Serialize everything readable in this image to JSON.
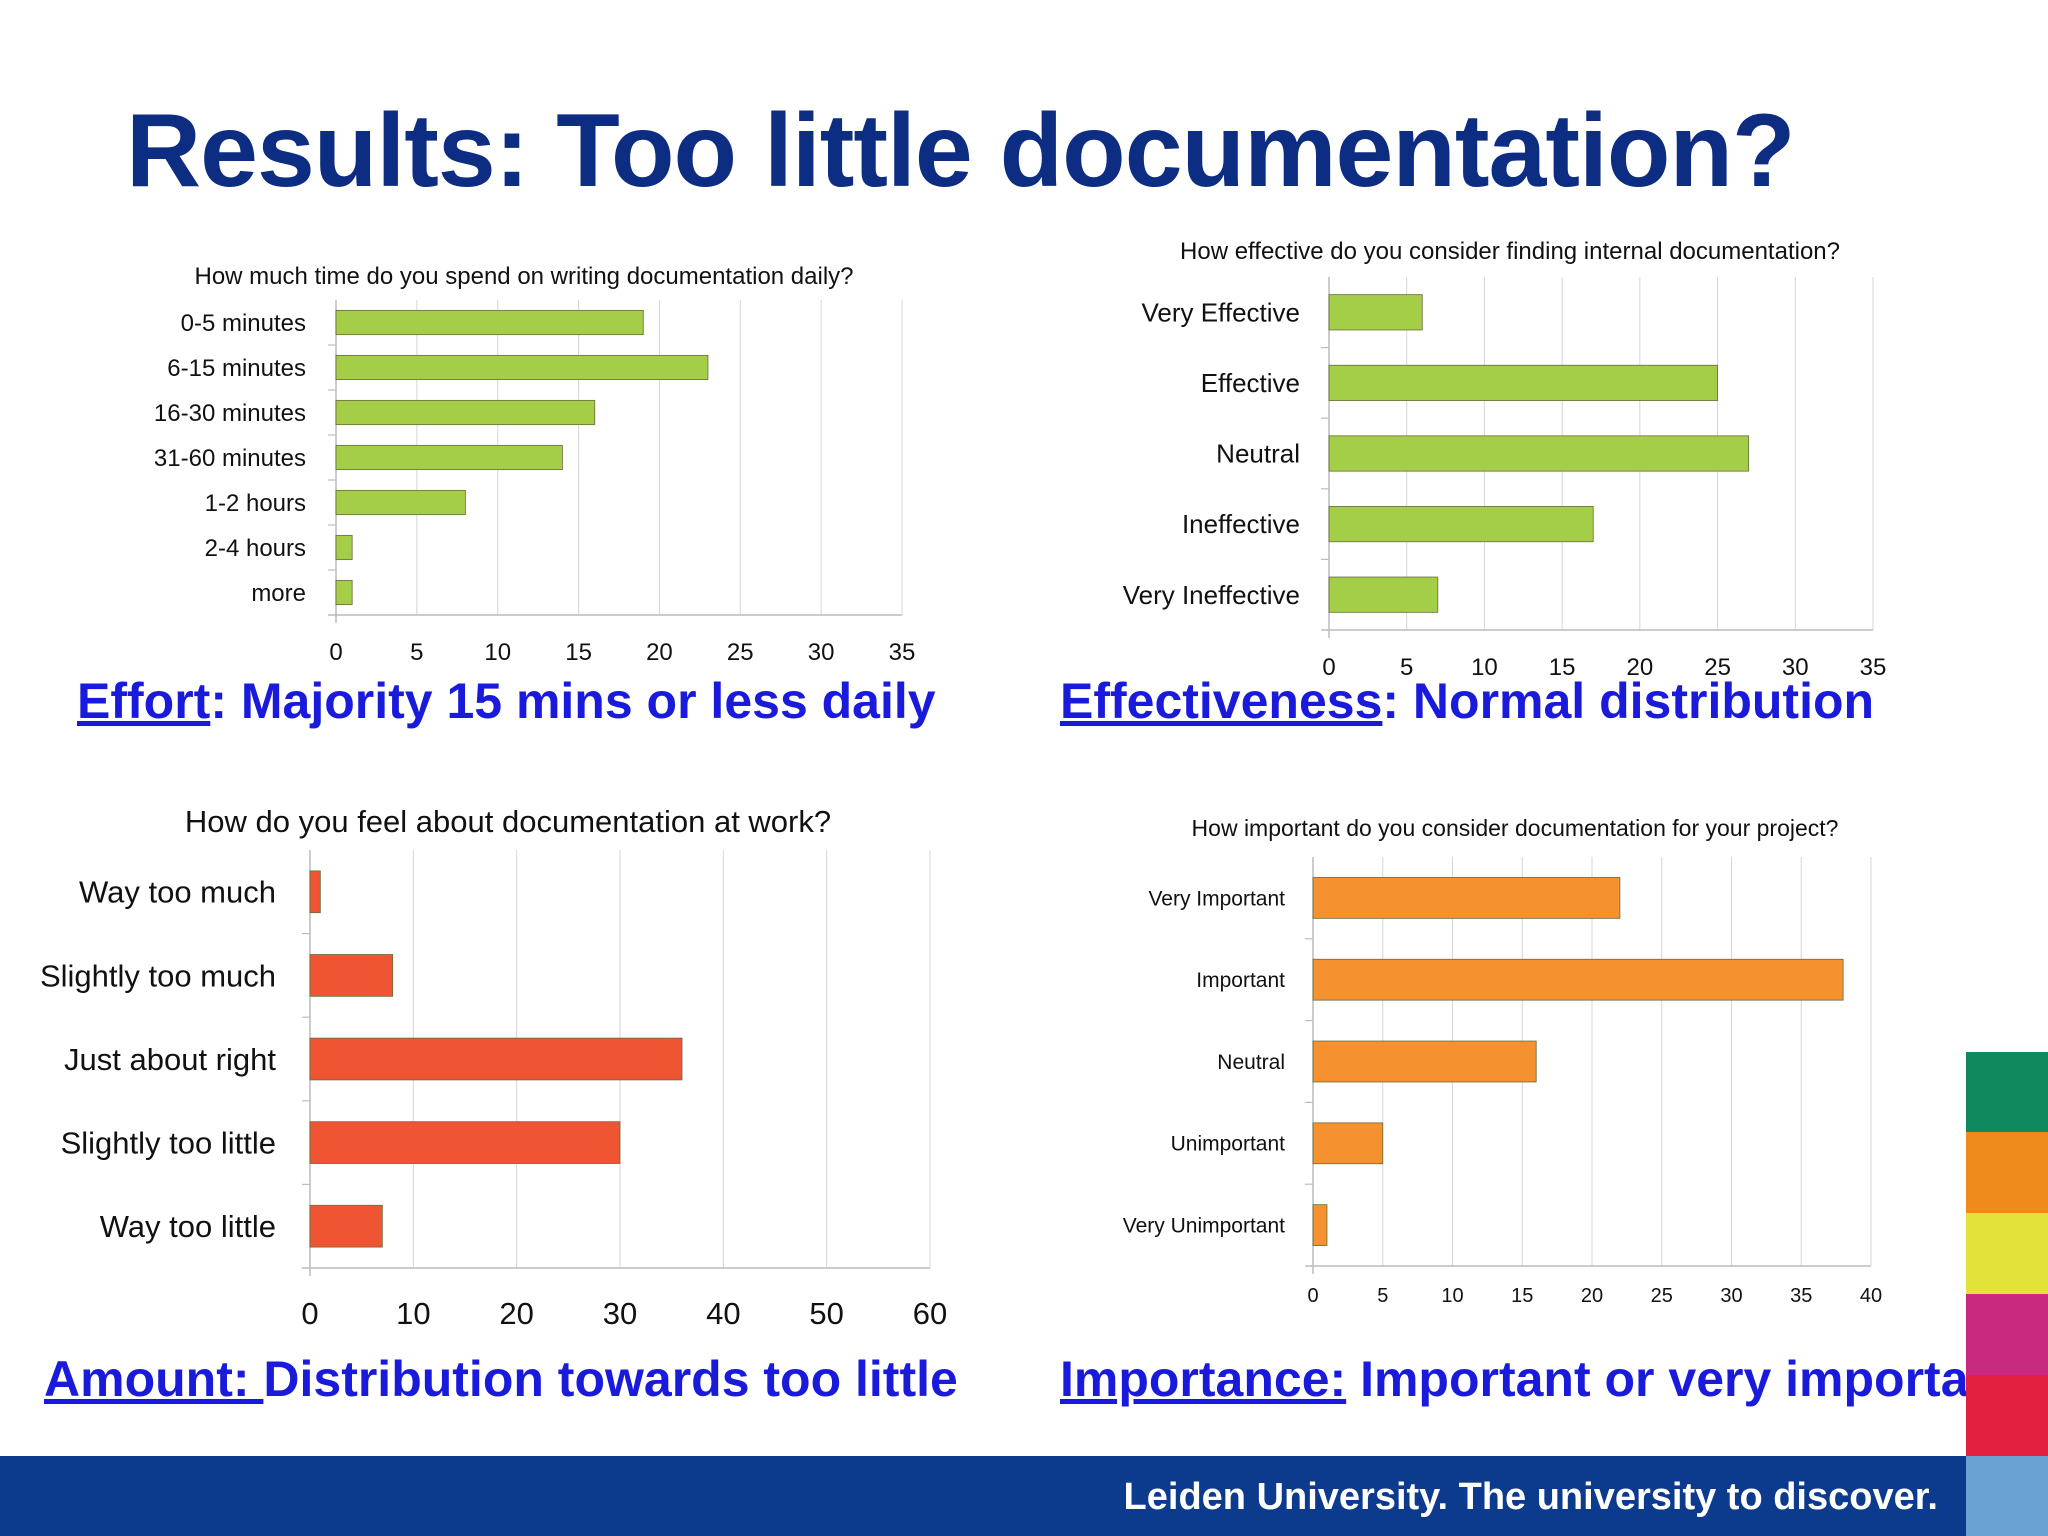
{
  "slide": {
    "title": "Results: Too little documentation?",
    "footer": "Leiden University. The university to discover.",
    "brand_strip_colors": [
      "#0e8a5e",
      "#ef8b1a",
      "#e2e23a",
      "#c72a7e",
      "#e3213f",
      "#6aa2d4"
    ]
  },
  "captions": [
    {
      "key": "Effort",
      "rest": ": Majority 15 mins or less daily"
    },
    {
      "key": "Effectiveness",
      "rest": ": Normal distribution"
    },
    {
      "key": "Amount: ",
      "rest": " Distribution towards too little"
    },
    {
      "key": "Importance:",
      "rest": " Important or very important"
    }
  ],
  "chart_data": [
    {
      "type": "bar",
      "orientation": "horizontal",
      "title": "How much time do you spend on writing documentation daily?",
      "categories": [
        "0-5 minutes",
        "6-15 minutes",
        "16-30 minutes",
        "31-60 minutes",
        "1-2 hours",
        "2-4 hours",
        "more"
      ],
      "values": [
        19,
        23,
        16,
        14,
        8,
        1,
        1
      ],
      "xlim": [
        0,
        35
      ],
      "xticks": [
        0,
        5,
        10,
        15,
        20,
        25,
        30,
        35
      ],
      "grid": true,
      "color": "#a4cd48"
    },
    {
      "type": "bar",
      "orientation": "horizontal",
      "title": "How effective do you consider finding internal documentation?",
      "categories": [
        "Very Effective",
        "Effective",
        "Neutral",
        "Ineffective",
        "Very Ineffective"
      ],
      "values": [
        6,
        25,
        27,
        17,
        7
      ],
      "xlim": [
        0,
        35
      ],
      "xticks": [
        0,
        5,
        10,
        15,
        20,
        25,
        30,
        35
      ],
      "grid": true,
      "color": "#a4cd48"
    },
    {
      "type": "bar",
      "orientation": "horizontal",
      "title": "How do you feel about documentation at work?",
      "categories": [
        "Way too much",
        "Slightly too much",
        "Just about right",
        "Slightly too little",
        "Way too little"
      ],
      "values": [
        1,
        8,
        36,
        30,
        7
      ],
      "xlim": [
        0,
        60
      ],
      "xticks": [
        0,
        10,
        20,
        30,
        40,
        50,
        60
      ],
      "grid": true,
      "color": "#ef5533"
    },
    {
      "type": "bar",
      "orientation": "horizontal",
      "title": "How important do you consider documentation for your project?",
      "categories": [
        "Very Important",
        "Important",
        "Neutral",
        "Unimportant",
        "Very Unimportant"
      ],
      "values": [
        22,
        38,
        16,
        5,
        1
      ],
      "xlim": [
        0,
        40
      ],
      "xticks": [
        0,
        5,
        10,
        15,
        20,
        25,
        30,
        35,
        40
      ],
      "grid": true,
      "color": "#f5922f"
    }
  ]
}
